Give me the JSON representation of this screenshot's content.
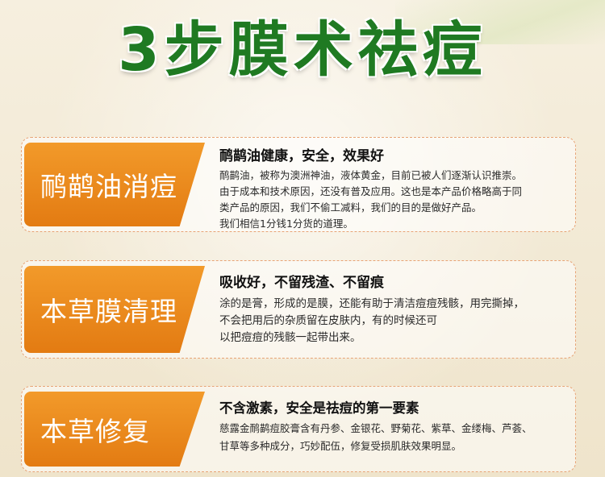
{
  "title": "3步膜术祛痘",
  "colors": {
    "title_green": "#1f7a22",
    "tag_orange": "#e37b12",
    "dashed_border": "#e7a476",
    "background": "#f4ecd9"
  },
  "steps": [
    {
      "tag": "鸸鹋油消痘",
      "headline": "鸸鹋油健康，安全，效果好",
      "lines": [
        "鸸鹋油，被称为澳洲神油，液体黄金，目前已被人们逐渐认识推崇。",
        "由于成本和技术原因，还没有普及应用。这也是本产品价格略高于同",
        "类产品的原因，我们不偷工减料，我们的目的是做好产品。",
        "我们相信1分钱1分货的道理。"
      ]
    },
    {
      "tag": "本草膜清理",
      "headline": "吸收好，不留残渣、不留痕",
      "lines": [
        "涂的是膏，形成的是膜，还能有助于清洁痘痘残骸，用完撕掉，",
        "不会把用后的杂质留在皮肤内，有的时候还可",
        "以把痘痘的残骸一起带出来。"
      ]
    },
    {
      "tag": "本草修复",
      "headline": "不含激素，安全是祛痘的第一要素",
      "lines": [
        "慈露金鸸鹋痘胶膏含有丹参、金银花、野菊花、紫草、金缕梅、芦荟、",
        "甘草等多种成分，巧妙配伍，修复受损肌肤效果明显。"
      ]
    }
  ]
}
